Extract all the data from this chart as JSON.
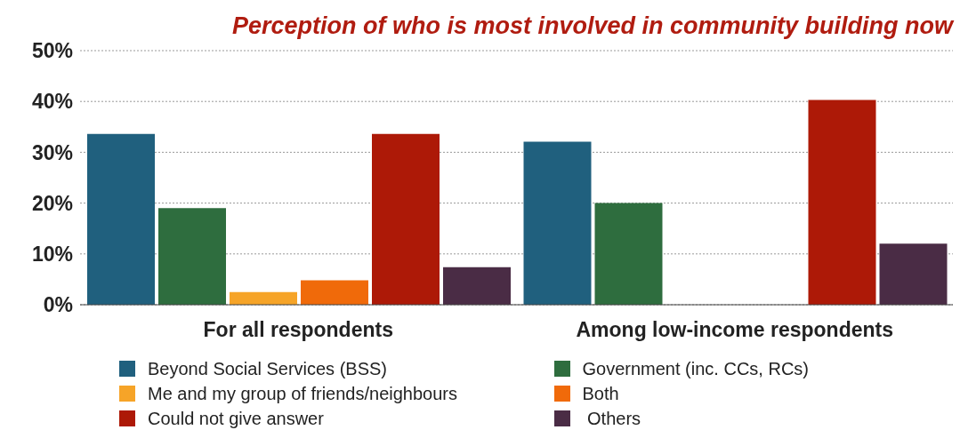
{
  "chart_data": {
    "type": "bar",
    "title": "Perception of who is most involved in community building now",
    "categories": [
      "For all respondents",
      "Among low-income respondents"
    ],
    "series": [
      {
        "name": "Beyond Social Services (BSS)",
        "color": "#20607e",
        "values": [
          33.6,
          32.1
        ]
      },
      {
        "name": "Government (inc. CCs, RCs)",
        "color": "#2e6d3e",
        "values": [
          19.0,
          20.0
        ]
      },
      {
        "name": "Me and my group of friends/neighbours",
        "color": "#f6a428",
        "values": [
          2.5,
          0
        ]
      },
      {
        "name": "Both",
        "color": "#f06a0a",
        "values": [
          4.8,
          0
        ]
      },
      {
        "name": "Could not give answer",
        "color": "#ad1907",
        "values": [
          33.6,
          40.3
        ]
      },
      {
        "name": " Others",
        "color": "#4a2c45",
        "values": [
          7.4,
          12.0
        ]
      }
    ],
    "ylim": [
      0,
      50
    ],
    "yticks": [
      {
        "value": 0,
        "label": "0%"
      },
      {
        "value": 10,
        "label": "10%"
      },
      {
        "value": 20,
        "label": "20%"
      },
      {
        "value": 30,
        "label": "30%"
      },
      {
        "value": 40,
        "label": "40%"
      },
      {
        "value": 50,
        "label": "50%"
      }
    ],
    "grid": "y",
    "legend": "bottom"
  }
}
